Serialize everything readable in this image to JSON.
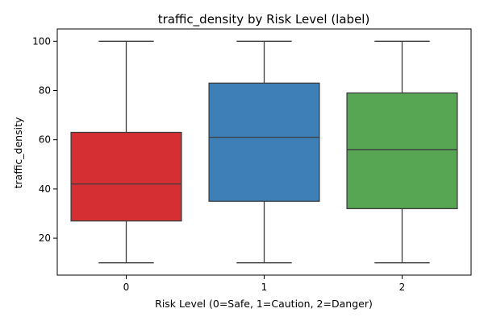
{
  "chart_data": {
    "type": "box",
    "title": "traffic_density by Risk Level (label)",
    "xlabel": "Risk Level (0=Safe, 1=Caution, 2=Danger)",
    "ylabel": "traffic_density",
    "ylim": [
      5,
      105
    ],
    "yticks": [
      20,
      40,
      60,
      80,
      100
    ],
    "categories": [
      "0",
      "1",
      "2"
    ],
    "boxes": [
      {
        "category": "0",
        "whisker_low": 10,
        "q1": 27,
        "median": 42,
        "q3": 63,
        "whisker_high": 100,
        "color": "#d62f33"
      },
      {
        "category": "1",
        "whisker_low": 10,
        "q1": 35,
        "median": 61,
        "q3": 83,
        "whisker_high": 100,
        "color": "#3f7fb7"
      },
      {
        "category": "2",
        "whisker_low": 10,
        "q1": 32,
        "median": 56,
        "q3": 79,
        "whisker_high": 100,
        "color": "#56a654"
      }
    ],
    "grid": false,
    "legend": "none"
  },
  "colors": {
    "line": "#3d3d3d",
    "axis": "#000000"
  }
}
